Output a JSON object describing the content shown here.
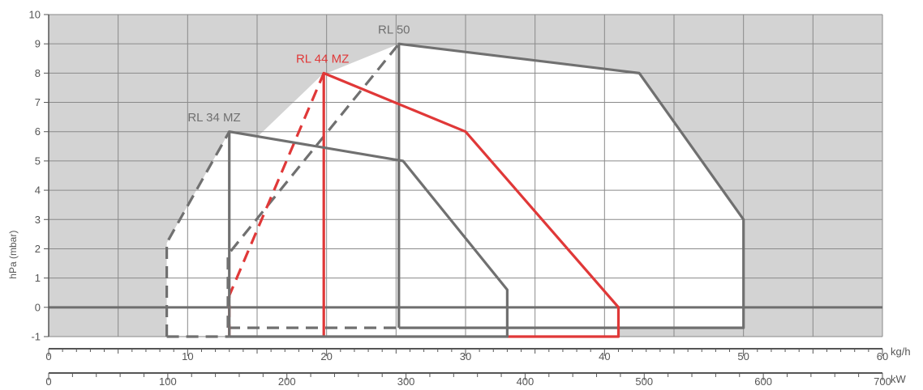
{
  "chart_data": {
    "type": "area",
    "ylabel": "hPa (mbar)",
    "ylim": [
      -1,
      10
    ],
    "yticks": [
      -1,
      0,
      1,
      2,
      3,
      4,
      5,
      6,
      7,
      8,
      9,
      10
    ],
    "grid": true,
    "axes": [
      {
        "unit": "kg/h",
        "range": [
          0,
          60
        ],
        "tick_labels": [
          "0",
          "10",
          "20",
          "30",
          "40",
          "50",
          "60"
        ]
      },
      {
        "unit": "kW",
        "range": [
          0,
          700
        ],
        "tick_labels": [
          "0",
          "100",
          "200",
          "300",
          "400",
          "500",
          "600",
          "700"
        ]
      }
    ],
    "colors": {
      "gray_series": "#707070",
      "red_series": "#e03838",
      "shaded_region": "#d3d3d3"
    },
    "series": [
      {
        "name": "RL 50",
        "color": "#707070",
        "x_unit": "kg/h",
        "dashed_segments": [
          [
            [
              12.9,
              -0.7
            ],
            [
              25.2,
              -0.7
            ]
          ],
          [
            [
              12.9,
              -0.7
            ],
            [
              12.9,
              1.8
            ],
            [
              25.2,
              9.0
            ]
          ]
        ],
        "solid_segments": [
          [
            [
              25.2,
              -0.7
            ],
            [
              50.0,
              -0.7
            ],
            [
              50.0,
              3.0
            ],
            [
              42.5,
              8.0
            ],
            [
              25.2,
              9.0
            ],
            [
              25.2,
              -0.7
            ]
          ]
        ]
      },
      {
        "name": "RL 44 MZ",
        "color": "#e03838",
        "x_unit": "kg/h",
        "dashed_segments": [
          [
            [
              13.0,
              -1.0
            ],
            [
              13.0,
              0.4
            ],
            [
              19.8,
              8.0
            ]
          ]
        ],
        "solid_segments": [
          [
            [
              19.8,
              -1.0
            ],
            [
              19.8,
              8.0
            ],
            [
              30.0,
              6.0
            ],
            [
              41.0,
              0.0
            ],
            [
              41.0,
              -1.0
            ],
            [
              33.0,
              -1.0
            ]
          ]
        ]
      },
      {
        "name": "RL 34 MZ",
        "color": "#707070",
        "x_unit": "kg/h",
        "dashed_segments": [
          [
            [
              8.5,
              -1.0
            ],
            [
              13.0,
              -1.0
            ]
          ],
          [
            [
              8.5,
              -1.0
            ],
            [
              8.5,
              2.2
            ],
            [
              13.0,
              6.0
            ]
          ]
        ],
        "solid_segments": [
          [
            [
              13.0,
              -1.0
            ],
            [
              13.0,
              6.0
            ],
            [
              25.5,
              5.0
            ],
            [
              33.0,
              0.6
            ],
            [
              33.0,
              -1.0
            ],
            [
              13.0,
              -1.0
            ]
          ]
        ]
      }
    ]
  }
}
